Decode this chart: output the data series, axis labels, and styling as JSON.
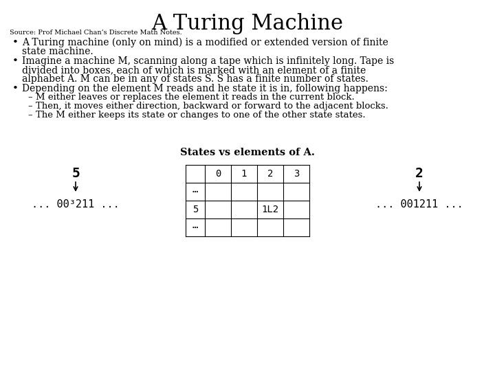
{
  "title": "A Turing Machine",
  "source": "Source: Prof Michael Chan’s Discrete Math Notes.",
  "bullet1_line1": "A Turing machine (only on mind) is a modified or extended version of finite",
  "bullet1_line2": "state machine.",
  "bullet2_line1": "Imagine a machine M, scanning along a tape which is infinitely long. Tape is",
  "bullet2_line2": "divided into boxes, each of which is marked with an element of a finite",
  "bullet2_line3": "alphabet A. M can be in any of states S. S has a finite number of states.",
  "bullet3_line1": "Depending on the element M reads and he state it is in, following happens:",
  "sub1": "M either leaves or replaces the element it reads in the current block.",
  "sub2": "Then, it moves either direction, backward or forward to the adjacent blocks.",
  "sub3": "The M either keeps its state or changes to one of the other state states.",
  "table_label": "States vs elements of A.",
  "left_state": "5",
  "left_tape": "... 00³211 ...",
  "right_state": "2",
  "right_tape": "... 001211 ...",
  "table_col_headers": [
    "",
    "0",
    "1",
    "2",
    "3"
  ],
  "table_row1": [
    "⋯",
    "",
    "",
    "",
    ""
  ],
  "table_row2": [
    "5",
    "",
    "",
    "1L2",
    ""
  ],
  "table_row3": [
    "⋯",
    "",
    "",
    "",
    ""
  ],
  "bg_color": "#ffffff",
  "text_color": "#000000",
  "title_fontsize": 22,
  "source_fontsize": 7,
  "body_fontsize": 10,
  "sub_fontsize": 9.5,
  "table_fontsize": 10,
  "diagram_fontsize": 14,
  "tape_fontsize": 11
}
